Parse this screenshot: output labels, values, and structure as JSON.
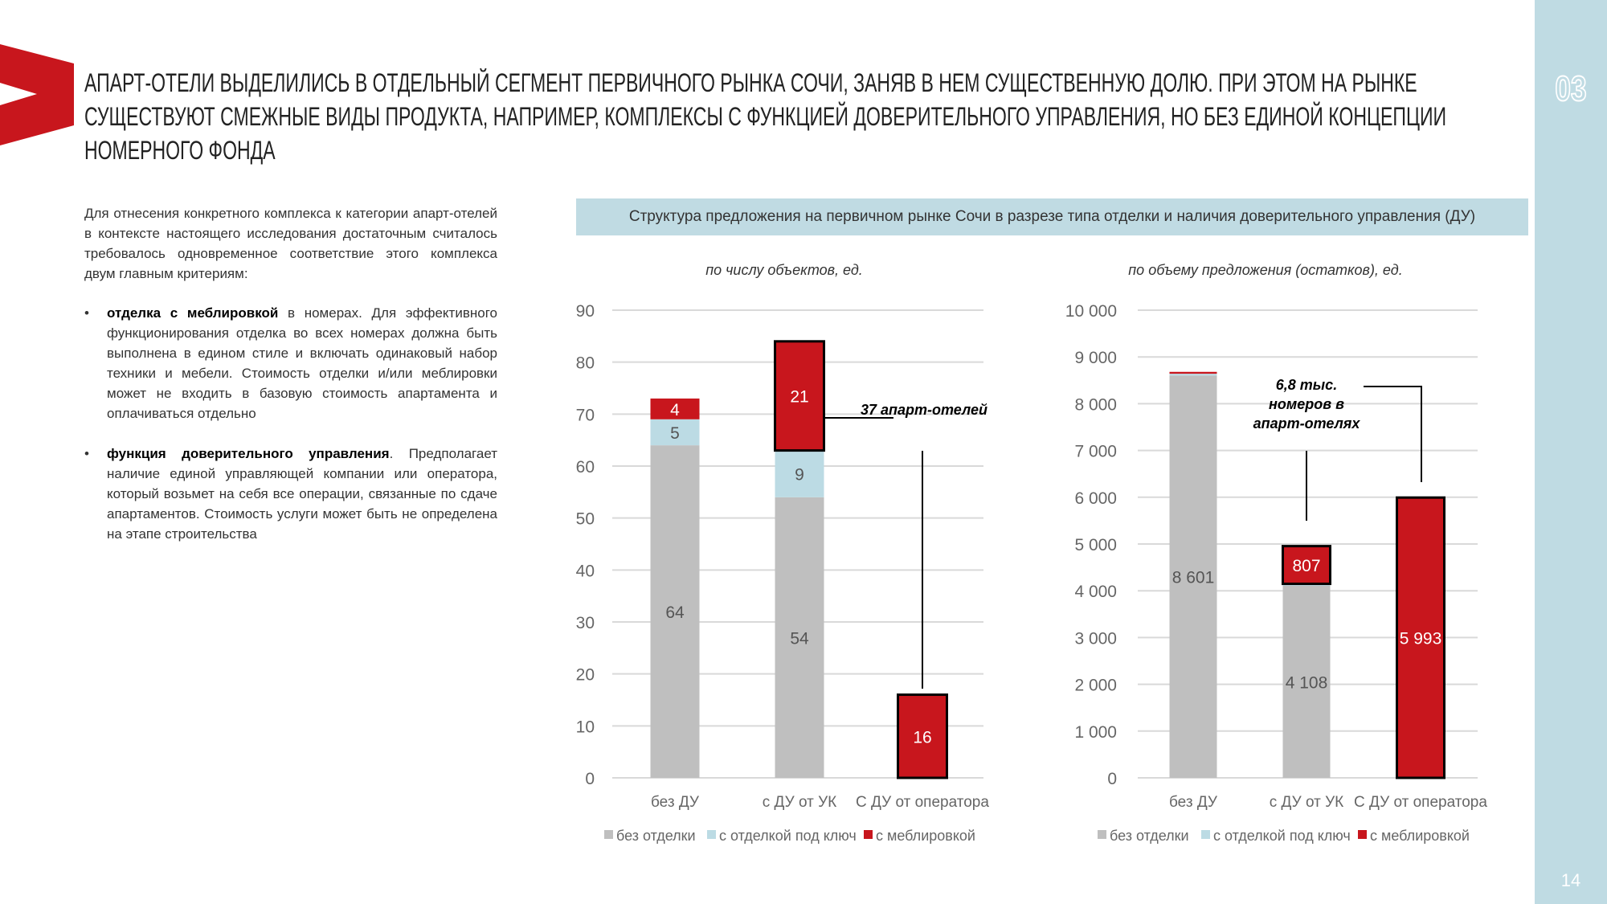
{
  "header": {
    "title": "Апарт-отели выделились в отдельный сегмент первичного рынка Сочи, заняв в нем существенную долю. При этом на рынке существуют смежные виды продукта, например, комплексы с функцией доверительного управления, но без единой концепции номерного фонда",
    "section": "03",
    "page": "14"
  },
  "text": {
    "intro": "Для отнесения конкретного комплекса к категории апарт-отелей в контексте настоящего исследования достаточным считалось требовалось одновременное соответствие этого комплекса двум главным критериям:",
    "bullets": [
      {
        "bold": "отделка с меблировкой",
        "rest": " в номерах. Для эффективного функционирования отделка во всех номерах должна быть выполнена в едином стиле и включать одинаковый набор техники и мебели. Стоимость отделки и/или меблировки может не входить в базовую стоимость апартамента и оплачиваться отдельно"
      },
      {
        "bold": "функция доверительного управления",
        "rest": ". Предполагает наличие единой управляющей компании или оператора, который возьмет на себя все операции, связанные по сдаче апартаментов. Стоимость услуги может быть не определена на этапе строительства"
      }
    ]
  },
  "chart_box_title": "Структура предложения на первичном рынке Сочи в разрезе типа отделки и наличия доверительного управления (ДУ)",
  "colors": {
    "gray": "#bfbfbf",
    "light_blue": "#bcdbe4",
    "red": "#c8161d"
  },
  "chart_data": [
    {
      "type": "bar",
      "stacked": true,
      "title": "по числу объектов, ед.",
      "categories": [
        "без ДУ",
        "с ДУ от УК",
        "С ДУ от оператора"
      ],
      "ylim": [
        0,
        90
      ],
      "yticks": [
        "0",
        "10",
        "20",
        "30",
        "40",
        "50",
        "60",
        "70",
        "80",
        "90"
      ],
      "ystep": 10,
      "series": [
        {
          "name": "без отделки",
          "values": [
            64,
            54,
            0
          ]
        },
        {
          "name": "с отделкой под ключ",
          "values": [
            5,
            9,
            0
          ]
        },
        {
          "name": "с меблировкой",
          "values": [
            4,
            21,
            16
          ]
        }
      ],
      "labels": [
        [
          "64",
          "5",
          "4"
        ],
        [
          "54",
          "9",
          "21"
        ],
        [
          "",
          "",
          "16"
        ]
      ],
      "annotation": "37 апарт-отелей",
      "legend": "bottom"
    },
    {
      "type": "bar",
      "stacked": true,
      "title": "по объему предложения (остатков), ед.",
      "categories": [
        "без ДУ",
        "с ДУ от УК",
        "С ДУ от оператора"
      ],
      "ylim": [
        0,
        10000
      ],
      "yticks": [
        "0",
        "1 000",
        "2 000",
        "3 000",
        "4 000",
        "5 000",
        "6 000",
        "7 000",
        "8 000",
        "9 000",
        "10 000"
      ],
      "ystep": 1000,
      "series": [
        {
          "name": "без отделки",
          "values": [
            8601,
            4108,
            0
          ]
        },
        {
          "name": "с отделкой под ключ",
          "values": [
            40,
            40,
            0
          ]
        },
        {
          "name": "с меблировкой",
          "values": [
            40,
            807,
            5993
          ]
        }
      ],
      "labels": [
        [
          "8 601",
          "",
          ""
        ],
        [
          "4 108",
          "",
          "807"
        ],
        [
          "",
          "",
          "5 993"
        ]
      ],
      "annotation": "6,8 тыс. номеров в апарт-отелях",
      "legend": "bottom"
    }
  ]
}
